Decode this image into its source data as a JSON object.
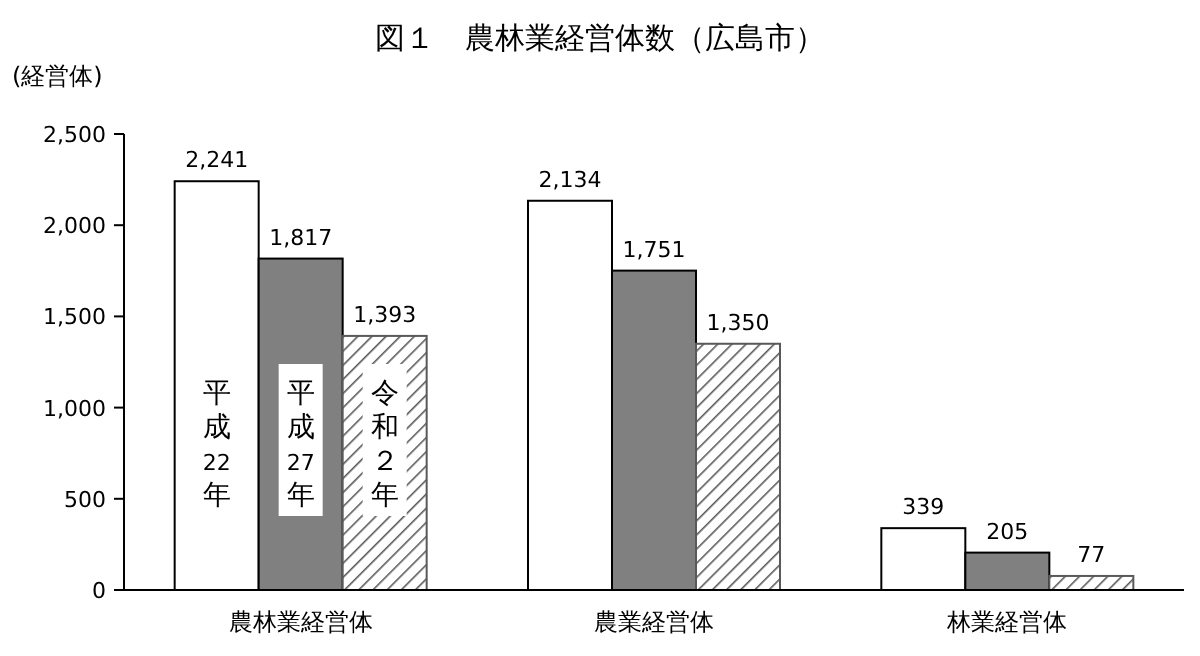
{
  "chart_data": {
    "type": "bar",
    "title": "図１　農林業経営体数（広島市）",
    "ylabel": "(経営体)",
    "categories": [
      "農林業経営体",
      "農業経営体",
      "林業経営体"
    ],
    "series": [
      {
        "name": "平成22年",
        "color": "#ffffff",
        "values": [
          2241,
          2134,
          339
        ],
        "value_labels": [
          "2,241",
          "2,134",
          "339"
        ]
      },
      {
        "name": "平成27年",
        "color": "#808080",
        "values": [
          1817,
          1751,
          205
        ],
        "value_labels": [
          "1,817",
          "1,751",
          "205"
        ]
      },
      {
        "name": "令和２年",
        "color": "#595959",
        "values": [
          1393,
          1350,
          77
        ],
        "value_labels": [
          "1,393",
          "1,350",
          "77"
        ]
      }
    ],
    "ylim": [
      0,
      2500
    ],
    "yticks": [
      0,
      500,
      {
        "value": 1000,
        "label": "1,000"
      },
      {
        "value": 1500,
        "label": "1,500"
      },
      {
        "value": 2000,
        "label": "2,000"
      },
      {
        "value": 2500,
        "label": "2,500"
      }
    ],
    "grid": false
  }
}
